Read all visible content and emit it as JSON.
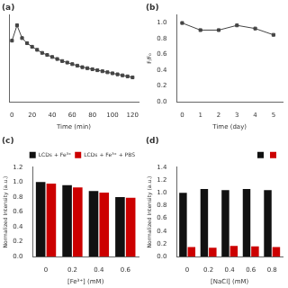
{
  "chart_data": [
    {
      "type": "line",
      "title": "(a)",
      "x": [
        0,
        5,
        10,
        15,
        20,
        25,
        30,
        35,
        40,
        45,
        50,
        55,
        60,
        65,
        70,
        75,
        80,
        85,
        90,
        95,
        100,
        105,
        110,
        115,
        120
      ],
      "values": [
        0.97,
        1.0,
        0.975,
        0.965,
        0.958,
        0.952,
        0.946,
        0.942,
        0.938,
        0.934,
        0.93,
        0.927,
        0.924,
        0.921,
        0.918,
        0.916,
        0.914,
        0.912,
        0.91,
        0.908,
        0.906,
        0.904,
        0.902,
        0.9,
        0.898
      ],
      "color": "#444444",
      "marker": "square",
      "xlabel": "Time (min)",
      "xlim": [
        -3,
        126
      ],
      "xticks": [
        0,
        20,
        40,
        60,
        80,
        100,
        120
      ],
      "ylim": [
        0.85,
        1.02
      ],
      "yticks": [],
      "tick_labels": "x",
      "grid": false
    },
    {
      "type": "line",
      "title": "(b)",
      "x": [
        0,
        1,
        2,
        3,
        4,
        5
      ],
      "values": [
        1.0,
        0.91,
        0.91,
        0.97,
        0.93,
        0.85
      ],
      "color": "#444444",
      "marker": "square",
      "xlabel": "Time (day)",
      "ylabel": "F/F₀",
      "xlim": [
        -0.3,
        5.5
      ],
      "xticks": [
        0,
        1,
        2,
        3,
        4,
        5
      ],
      "ylim": [
        0.0,
        1.1
      ],
      "yticks": [
        {
          "value": 0,
          "label": "0.0"
        },
        0.2,
        0.4,
        0.6,
        0.8,
        {
          "value": 1,
          "label": "1.0"
        }
      ],
      "grid": false
    },
    {
      "type": "bar",
      "title": "(c)",
      "categories": [
        "0",
        "0.2",
        "0.4",
        "0.6"
      ],
      "series": [
        {
          "name": "LCDs + Fe³⁺",
          "color": "#111111",
          "values": [
            1.0,
            0.96,
            0.88,
            0.8
          ]
        },
        {
          "name": "LCDs + Fe³⁺ + PBS",
          "color": "#cc0000",
          "values": [
            0.98,
            0.93,
            0.86,
            0.79
          ]
        }
      ],
      "xlabel": "[Fe³⁺] (mM)",
      "ylabel": "Normalized Intensity (a.u.)",
      "ylim": [
        0.0,
        1.2
      ],
      "yticks": [
        {
          "value": 0,
          "label": "0.0"
        },
        0.2,
        0.4,
        0.6,
        0.8,
        {
          "value": 1,
          "label": "1.0"
        },
        1.2
      ],
      "legend": "top",
      "grid": false
    },
    {
      "type": "bar",
      "title": "(d)",
      "categories": [
        "0",
        "0.2",
        "0.4",
        "0.6",
        "0.8"
      ],
      "series": [
        {
          "color": "#111111",
          "values": [
            1.0,
            1.06,
            1.04,
            1.06,
            1.04
          ]
        },
        {
          "color": "#cc0000",
          "values": [
            0.15,
            0.14,
            0.17,
            0.16,
            0.15
          ]
        }
      ],
      "xlabel": "[NaCl] (mM)",
      "ylabel": "Normalized Intensity (a.u.)",
      "ylim": [
        0.0,
        1.4
      ],
      "yticks": [
        {
          "value": 0,
          "label": "0.0"
        },
        0.2,
        0.4,
        0.6,
        0.8,
        {
          "value": 1,
          "label": "1.0"
        },
        1.2,
        1.4
      ],
      "legend": "top",
      "grid": false
    }
  ]
}
